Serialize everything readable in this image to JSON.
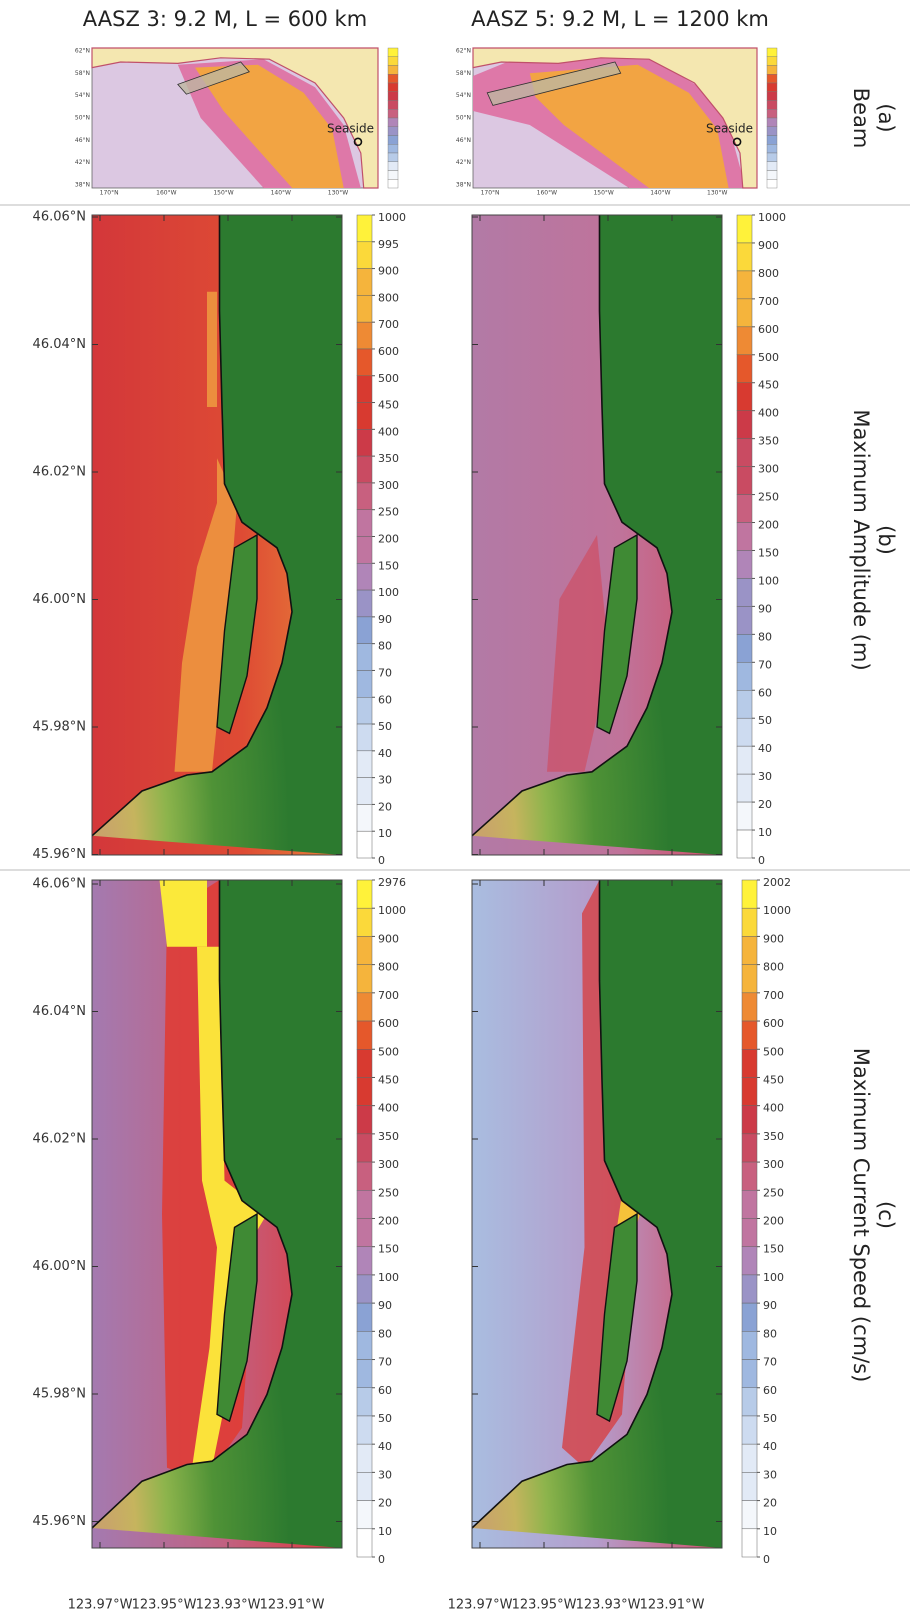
{
  "column_titles": [
    "AASZ 3: 9.2 M, L = 600 km",
    "AASZ 5: 9.2 M, L = 1200 km"
  ],
  "row_labels": [
    {
      "letter": "(a)",
      "name": "Beam"
    },
    {
      "letter": "(b)",
      "name": "Maximum Amplitude (m)"
    },
    {
      "letter": "(c)",
      "name": "Maximum Current Speed (cm/s)"
    }
  ],
  "overview_map": {
    "lat_labels": [
      "62°N",
      "58°N",
      "54°N",
      "50°N",
      "46°N",
      "42°N",
      "38°N"
    ],
    "lon_labels": [
      "170°N",
      "160°W",
      "150°W",
      "140°W",
      "130°W"
    ],
    "place_label": "Seaside"
  },
  "detail_map": {
    "lat_labels": [
      "46.06°N",
      "46.04°N",
      "46.02°N",
      "46.00°N",
      "45.98°N",
      "45.96°N"
    ],
    "lon_labels": [
      "123.97°W",
      "123.95°W",
      "123.93°W",
      "123.91°W"
    ]
  },
  "colorbars": {
    "amplitude": [
      [
        1000,
        995,
        900,
        800,
        700,
        600,
        500,
        450,
        400,
        350,
        300,
        250,
        200,
        150,
        100,
        90,
        80,
        70,
        60,
        50,
        40,
        30,
        20,
        10,
        0
      ],
      [
        1000,
        900,
        800,
        700,
        600,
        500,
        450,
        400,
        350,
        300,
        250,
        200,
        150,
        100,
        90,
        80,
        70,
        60,
        50,
        40,
        30,
        20,
        10,
        0
      ]
    ],
    "current_speed": [
      [
        2976,
        1000,
        900,
        800,
        700,
        600,
        500,
        450,
        400,
        350,
        300,
        250,
        200,
        150,
        100,
        90,
        80,
        70,
        60,
        50,
        40,
        30,
        20,
        10,
        0
      ],
      [
        2002,
        1000,
        900,
        800,
        700,
        600,
        500,
        450,
        400,
        350,
        300,
        250,
        200,
        150,
        100,
        90,
        80,
        70,
        60,
        50,
        40,
        30,
        20,
        10,
        0
      ]
    ]
  }
}
